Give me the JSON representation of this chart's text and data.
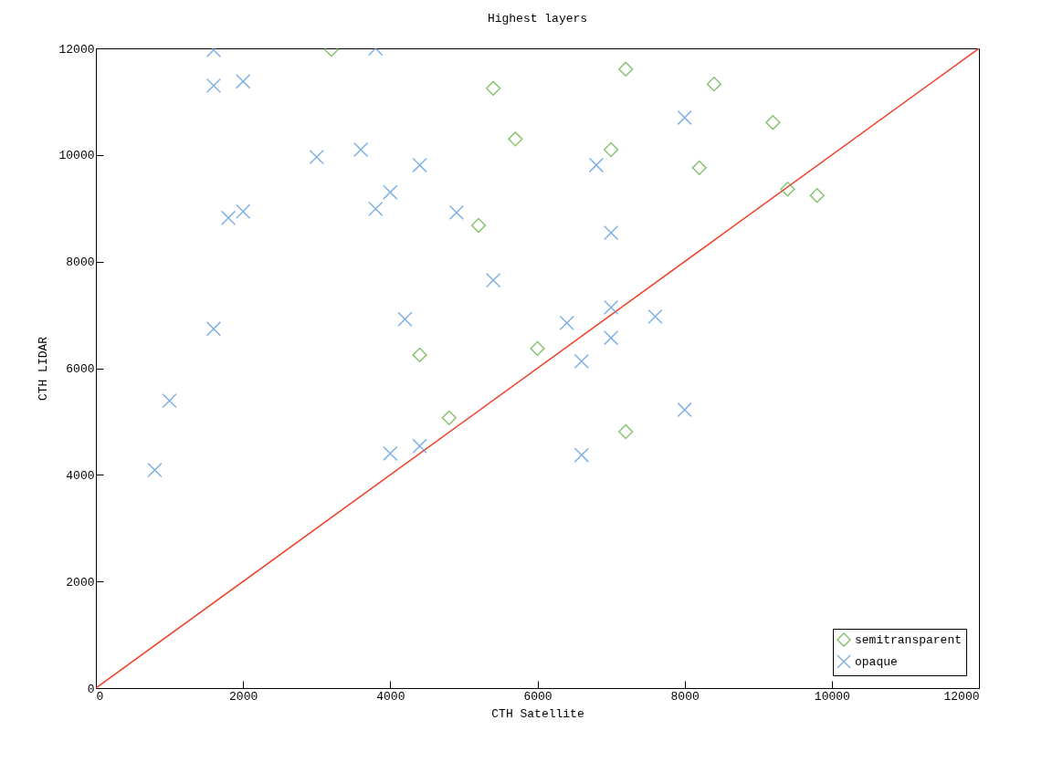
{
  "chart_data": {
    "type": "scatter",
    "title": "Highest layers",
    "xlabel": "CTH Satellite",
    "ylabel": "CTH LIDAR",
    "xlim": [
      0,
      12000
    ],
    "ylim": [
      0,
      12000
    ],
    "xticks": [
      0,
      2000,
      4000,
      6000,
      8000,
      10000,
      12000
    ],
    "yticks": [
      0,
      2000,
      4000,
      6000,
      8000,
      10000,
      12000
    ],
    "grid": false,
    "legend": "bottom right",
    "series": [
      {
        "type": "line",
        "color": "#f04028",
        "marker": "none",
        "line_style": "solid",
        "x": [
          0,
          12000
        ],
        "values": [
          0,
          12000
        ]
      },
      {
        "name": "semitransparent",
        "color": "#5aaa3c",
        "marker": "diamond",
        "x": [
          3200,
          5400,
          5700,
          5200,
          4400,
          4800,
          6000,
          7200,
          7200,
          7000,
          9200,
          8400,
          8200,
          9400,
          9800
        ],
        "values": [
          11980,
          11250,
          10300,
          8680,
          6250,
          5070,
          6370,
          4810,
          11610,
          10100,
          10610,
          11330,
          9760,
          9360,
          9240
        ]
      },
      {
        "name": "opaque",
        "color": "#4a90d8",
        "marker": "cross",
        "x": [
          1600,
          1600,
          2000,
          3800,
          3000,
          3600,
          4400,
          4000,
          3800,
          1800,
          2000,
          4900,
          5400,
          1600,
          4200,
          1000,
          800,
          4000,
          4400,
          6400,
          7000,
          7000,
          6600,
          7600,
          8000,
          6600,
          8000,
          6800,
          7000
        ],
        "values": [
          11970,
          11300,
          11380,
          12000,
          9960,
          10100,
          9810,
          9300,
          8990,
          8820,
          8940,
          8920,
          7650,
          6740,
          6920,
          5390,
          4090,
          4400,
          4540,
          6850,
          7140,
          6570,
          6130,
          6970,
          5220,
          4370,
          10700,
          9810,
          8540
        ]
      }
    ]
  }
}
